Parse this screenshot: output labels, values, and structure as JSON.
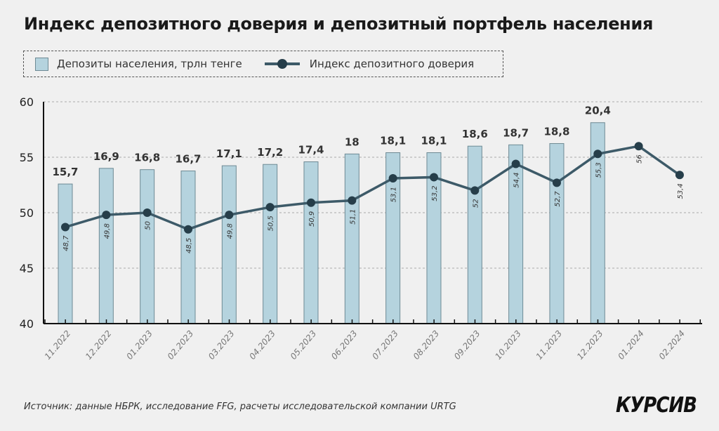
{
  "title": "Индекс депозитного доверия и депозитный портфель населения",
  "source": "Источник: данные НБРК, исследование FFG, расчеты исследовательской компании URTG",
  "logo": "КУРСИВ",
  "chart_data": {
    "type": "bar+line",
    "categories": [
      "11.2022",
      "12.2022",
      "01.2023",
      "02.2023",
      "03.2023",
      "04.2023",
      "05.2023",
      "06.2023",
      "07.2023",
      "08.2023",
      "09.2023",
      "10.2023",
      "11.2023",
      "12.2023",
      "01.2024",
      "02.2024"
    ],
    "series": [
      {
        "name": "Депозиты населения, трлн тенге",
        "type": "bar",
        "color": "#b5d3de",
        "values": [
          15.7,
          16.9,
          16.8,
          16.7,
          17.1,
          17.2,
          17.4,
          18,
          18.1,
          18.1,
          18.6,
          18.7,
          18.8,
          20.4,
          null,
          null
        ],
        "labels": [
          "15,7",
          "16,9",
          "16,8",
          "16,7",
          "17,1",
          "17,2",
          "17,4",
          "18",
          "18,1",
          "18,1",
          "18,6",
          "18,7",
          "18,8",
          "20,4",
          "",
          ""
        ],
        "secondary_axis_range": [
          5,
          22
        ]
      },
      {
        "name": "Индекс депозитного доверия",
        "type": "line",
        "color": "#3d5a68",
        "values": [
          48.7,
          49.8,
          50,
          48.5,
          49.8,
          50.5,
          50.9,
          51.1,
          53.1,
          53.2,
          52,
          54.4,
          52.7,
          55.3,
          56,
          53.4
        ],
        "labels": [
          "48,7",
          "49,8",
          "50",
          "48,5",
          "49,8",
          "50,5",
          "50,9",
          "51,1",
          "53,1",
          "53,2",
          "52",
          "54,4",
          "52,7",
          "55,3",
          "56",
          "53,4"
        ]
      }
    ],
    "ylim": [
      40,
      60
    ],
    "yticks": [
      "40",
      "45",
      "50",
      "55",
      "60"
    ],
    "grid": true,
    "legend_position": "top-left"
  }
}
